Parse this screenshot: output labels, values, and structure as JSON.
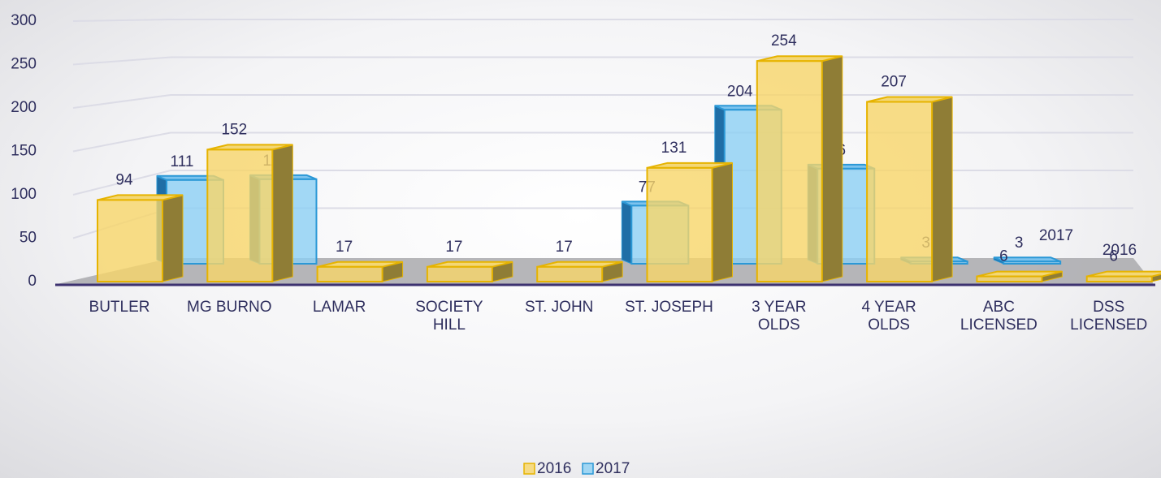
{
  "chart_data": {
    "type": "bar3d",
    "categories": [
      "BUTLER",
      "MG BURNO",
      "LAMAR",
      "SOCIETY HILL",
      "ST. JOHN",
      "ST. JOSEPH",
      "3 YEAR OLDS",
      "4 YEAR OLDS",
      "ABC LICENSED",
      "DSS LICENSED"
    ],
    "series": [
      {
        "name": "2016",
        "color": "#f5d46e",
        "values": [
          94,
          152,
          17,
          17,
          17,
          131,
          254,
          207,
          6,
          6
        ]
      },
      {
        "name": "2017",
        "color": "#8ccff4",
        "values": [
          111,
          112,
          null,
          null,
          null,
          77,
          204,
          126,
          3,
          3
        ]
      }
    ],
    "ylim": [
      0,
      300
    ],
    "yticks": [
      0,
      50,
      100,
      150,
      200,
      250,
      300
    ],
    "grid": true,
    "legend": "bottom"
  }
}
